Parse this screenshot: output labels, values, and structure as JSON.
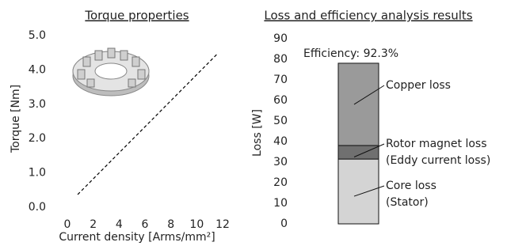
{
  "chart_data": [
    {
      "type": "line",
      "title": "Torque properties",
      "xlabel": "Current density [Arms/mm²]",
      "ylabel": "Torque [Nm]",
      "x": [
        0.8,
        11.6
      ],
      "values": [
        0.37,
        4.47
      ],
      "color": "#000000",
      "line_style": "dashed",
      "xlim": [
        0,
        12
      ],
      "ylim": [
        0,
        5
      ],
      "xticks": [
        0,
        2,
        4,
        6,
        8,
        10,
        12
      ],
      "yticks": [
        {
          "value": 0,
          "label": "0.0"
        },
        {
          "value": 1,
          "label": "1.0"
        },
        {
          "value": 2,
          "label": "2.0"
        },
        {
          "value": 3,
          "label": "3.0"
        },
        {
          "value": 4,
          "label": "4.0"
        },
        {
          "value": 5,
          "label": "5.0"
        }
      ]
    },
    {
      "type": "bar",
      "title": "Loss and efficiency analysis results",
      "ylabel": "Loss [W]",
      "annotation": "Efficiency: 92.3%",
      "categories": [
        null
      ],
      "stacked": true,
      "series": [
        {
          "name": "Core loss",
          "sublabel": "(Stator)",
          "color": "#d4d4d4",
          "values": [
            31.5
          ]
        },
        {
          "name": "Rotor magnet loss",
          "sublabel": "(Eddy current loss)",
          "color": "#707070",
          "values": [
            6.6
          ]
        },
        {
          "name": "Copper loss",
          "color": "#9a9a9a",
          "values": [
            40
          ]
        }
      ],
      "ylim": [
        0,
        90
      ],
      "yticks": [
        0,
        10,
        20,
        30,
        40,
        50,
        60,
        70,
        80,
        90
      ]
    }
  ]
}
